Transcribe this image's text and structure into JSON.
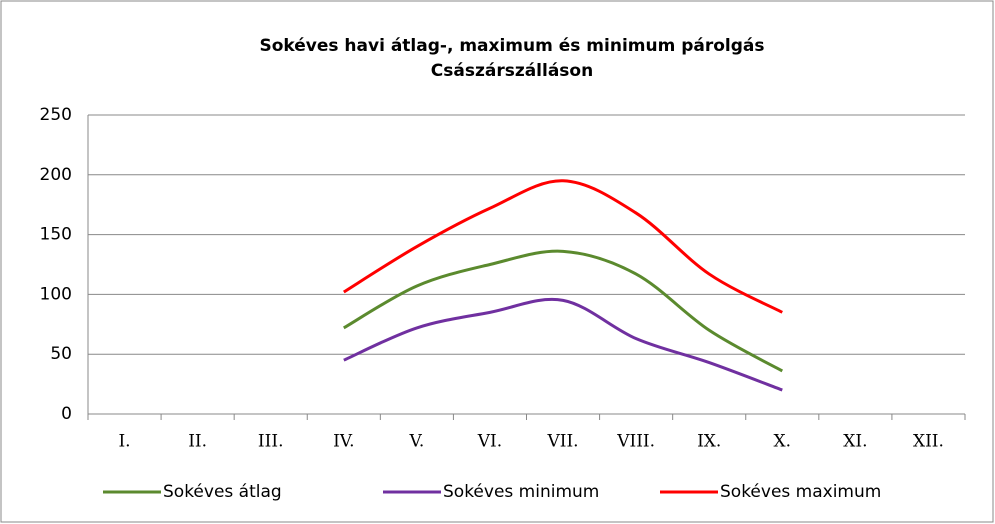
{
  "chart_data": {
    "type": "line",
    "title": "Sokéves havi átlag-, maximum és minimum párolgás",
    "subtitle": "Császárszálláson",
    "categories": [
      "I.",
      "II.",
      "III.",
      "IV.",
      "V.",
      "VI.",
      "VII.",
      "VIII.",
      "IX.",
      "X.",
      "XI.",
      "XII."
    ],
    "series": [
      {
        "name": "Sokéves átlag",
        "color": "#5b8a2e",
        "values": [
          null,
          null,
          null,
          72,
          107,
          125,
          136,
          117,
          70,
          36,
          null,
          null
        ]
      },
      {
        "name": "Sokéves minimum",
        "color": "#7030a0",
        "values": [
          null,
          null,
          null,
          45,
          72,
          85,
          95,
          63,
          43,
          20,
          null,
          null
        ]
      },
      {
        "name": "Sokéves maximum",
        "color": "#ff0000",
        "values": [
          null,
          null,
          null,
          102,
          140,
          172,
          195,
          168,
          117,
          85,
          null,
          null
        ]
      }
    ],
    "ylim": [
      0,
      250
    ],
    "yticks": [
      0,
      50,
      100,
      150,
      200,
      250
    ],
    "grid": true,
    "smooth": true,
    "legend": "bottom"
  }
}
